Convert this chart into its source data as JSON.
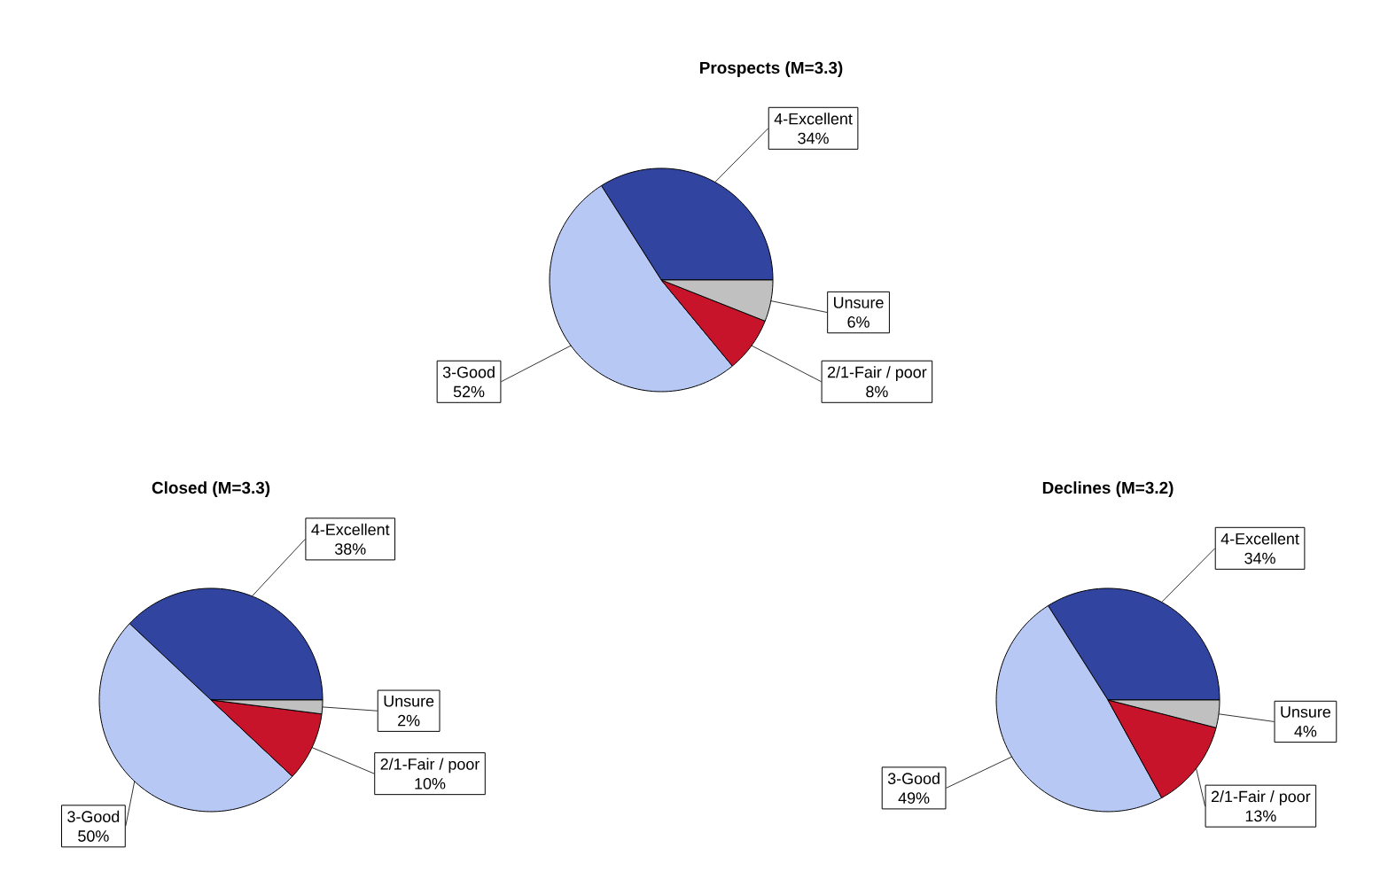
{
  "chart_data": [
    {
      "type": "pie",
      "title": "Prospects (M=3.3)",
      "categories": [
        "4-Excellent",
        "3-Good",
        "2/1-Fair / poor",
        "Unsure"
      ],
      "values": [
        34,
        52,
        8,
        6
      ],
      "colors": [
        "#3044a0",
        "#b8c8f4",
        "#c8142a",
        "#c0c0c0"
      ],
      "value_labels": [
        "34%",
        "52%",
        "8%",
        "6%"
      ]
    },
    {
      "type": "pie",
      "title": "Closed (M=3.3)",
      "categories": [
        "4-Excellent",
        "3-Good",
        "2/1-Fair / poor",
        "Unsure"
      ],
      "values": [
        38,
        50,
        10,
        2
      ],
      "colors": [
        "#3044a0",
        "#b8c8f4",
        "#c8142a",
        "#c0c0c0"
      ],
      "value_labels": [
        "38%",
        "50%",
        "10%",
        "2%"
      ]
    },
    {
      "type": "pie",
      "title": "Declines (M=3.2)",
      "categories": [
        "4-Excellent",
        "3-Good",
        "2/1-Fair / poor",
        "Unsure"
      ],
      "values": [
        34,
        49,
        13,
        4
      ],
      "colors": [
        "#3044a0",
        "#b8c8f4",
        "#c8142a",
        "#c0c0c0"
      ],
      "value_labels": [
        "34%",
        "49%",
        "13%",
        "4%"
      ]
    }
  ]
}
